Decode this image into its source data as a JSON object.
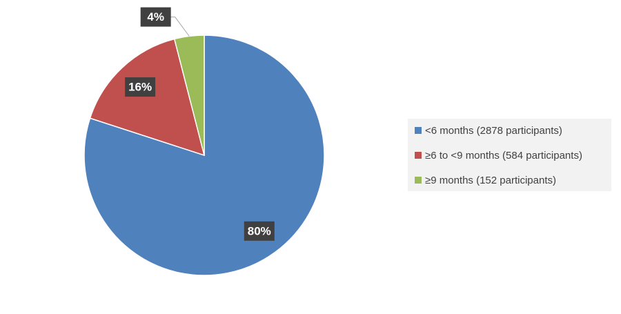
{
  "chart_data": {
    "type": "pie",
    "categories": [
      "<6 months (2878 participants)",
      "≥6 to <9 months (584 participants)",
      "≥9 months (152 participants)"
    ],
    "values": [
      80,
      16,
      4
    ],
    "value_labels": [
      "80%",
      "16%",
      "4%"
    ],
    "colors": [
      "#4f81bd",
      "#c0504d",
      "#9bbb59"
    ],
    "legend": "right"
  }
}
